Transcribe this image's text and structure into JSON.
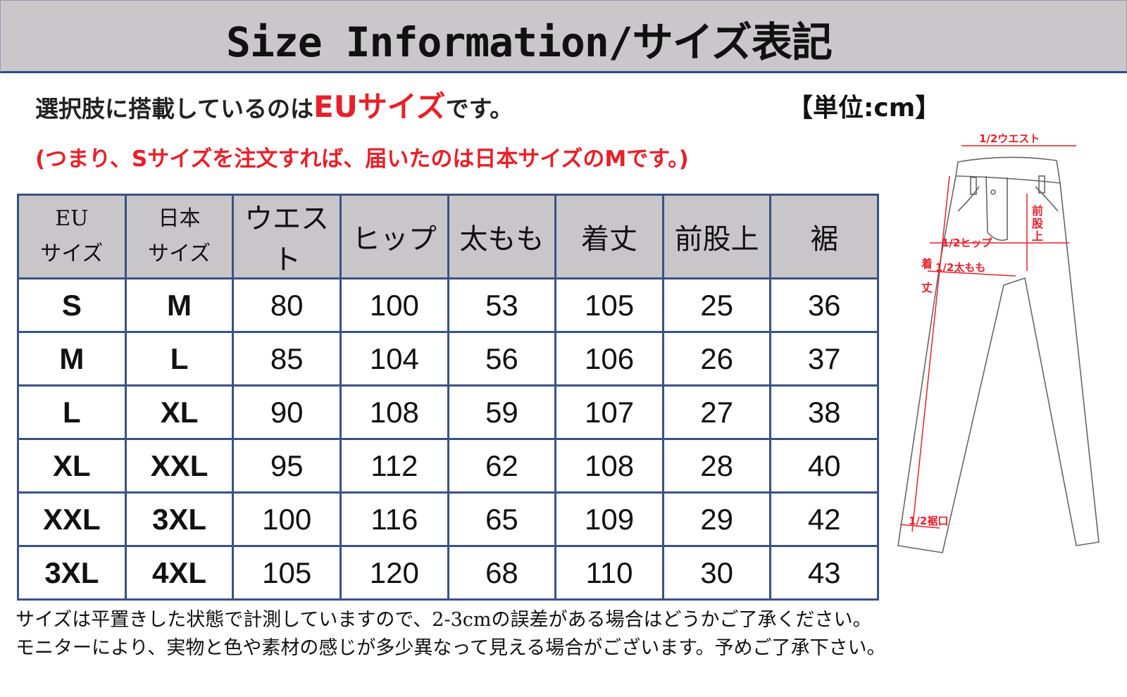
{
  "title": "Size Information/サイズ表記",
  "note_prefix": "選択肢に搭載しているのは",
  "note_highlight": "EUサイズ",
  "note_suffix": "です。",
  "unit": "【単位:cm】",
  "note_red": "(つまり、Sサイズを注文すれば、届いたのは日本サイズのMです。)",
  "table": {
    "headers": [
      {
        "line1": "EU",
        "line2": "サイズ"
      },
      {
        "line1": "日本",
        "line2": "サイズ"
      },
      {
        "line1": "ウエスト"
      },
      {
        "line1": "ヒップ"
      },
      {
        "line1": "太もも"
      },
      {
        "line1": "着丈"
      },
      {
        "line1": "前股上"
      },
      {
        "line1": "裾"
      }
    ],
    "rows": [
      [
        "S",
        "M",
        "80",
        "100",
        "53",
        "105",
        "25",
        "36"
      ],
      [
        "M",
        "L",
        "85",
        "104",
        "56",
        "106",
        "26",
        "37"
      ],
      [
        "L",
        "XL",
        "90",
        "108",
        "59",
        "107",
        "27",
        "38"
      ],
      [
        "XL",
        "XXL",
        "95",
        "112",
        "62",
        "108",
        "28",
        "40"
      ],
      [
        "XXL",
        "3XL",
        "100",
        "116",
        "65",
        "109",
        "29",
        "42"
      ],
      [
        "3XL",
        "4XL",
        "105",
        "120",
        "68",
        "110",
        "30",
        "43"
      ]
    ]
  },
  "diagram": {
    "waist": "1/2ウエスト",
    "hip": "1/2ヒップ",
    "thigh": "1/2太もも",
    "rise": "前股上",
    "length": "着丈",
    "hem": "1/2裾口",
    "accent": "#e8202a"
  },
  "footer": [
    "サイズは平置きした状態で計測していますので、2-3cmの誤差がある場合はどうかご了承ください。",
    "モニターにより、実物と色や素材の感じが多少異なって見える場合がございます。予めご了承下さい。"
  ]
}
